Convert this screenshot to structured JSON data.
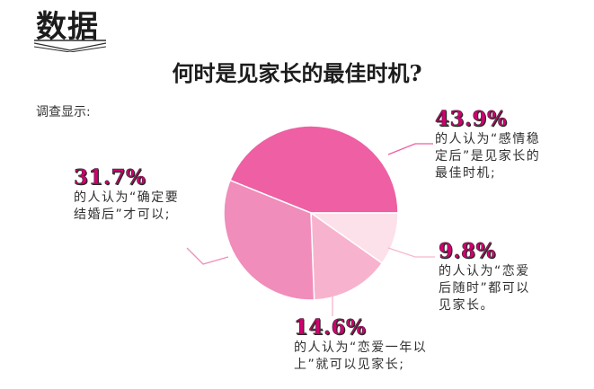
{
  "section": {
    "title": "数据"
  },
  "chart_data": {
    "type": "pie",
    "title": "何时是见家长的最佳时机?",
    "subtitle": "调查显示:",
    "slices": [
      {
        "value": 43.9,
        "label": "43.9%",
        "desc": "的人认为“感情稳定后”是见家长的最佳时机;",
        "color": "#ee5fa3"
      },
      {
        "value": 9.8,
        "label": "9.8%",
        "desc": "的人认为“恋爱后随时”都可以见家长。",
        "color": "#fce0ea"
      },
      {
        "value": 14.6,
        "label": "14.6%",
        "desc": "的人认为“恋爱一年以上”就可以见家长;",
        "color": "#f7b3cd"
      },
      {
        "value": 31.7,
        "label": "31.7%",
        "desc": "的人认为“确定要结婚后”才可以;",
        "color": "#f08dba"
      }
    ]
  }
}
